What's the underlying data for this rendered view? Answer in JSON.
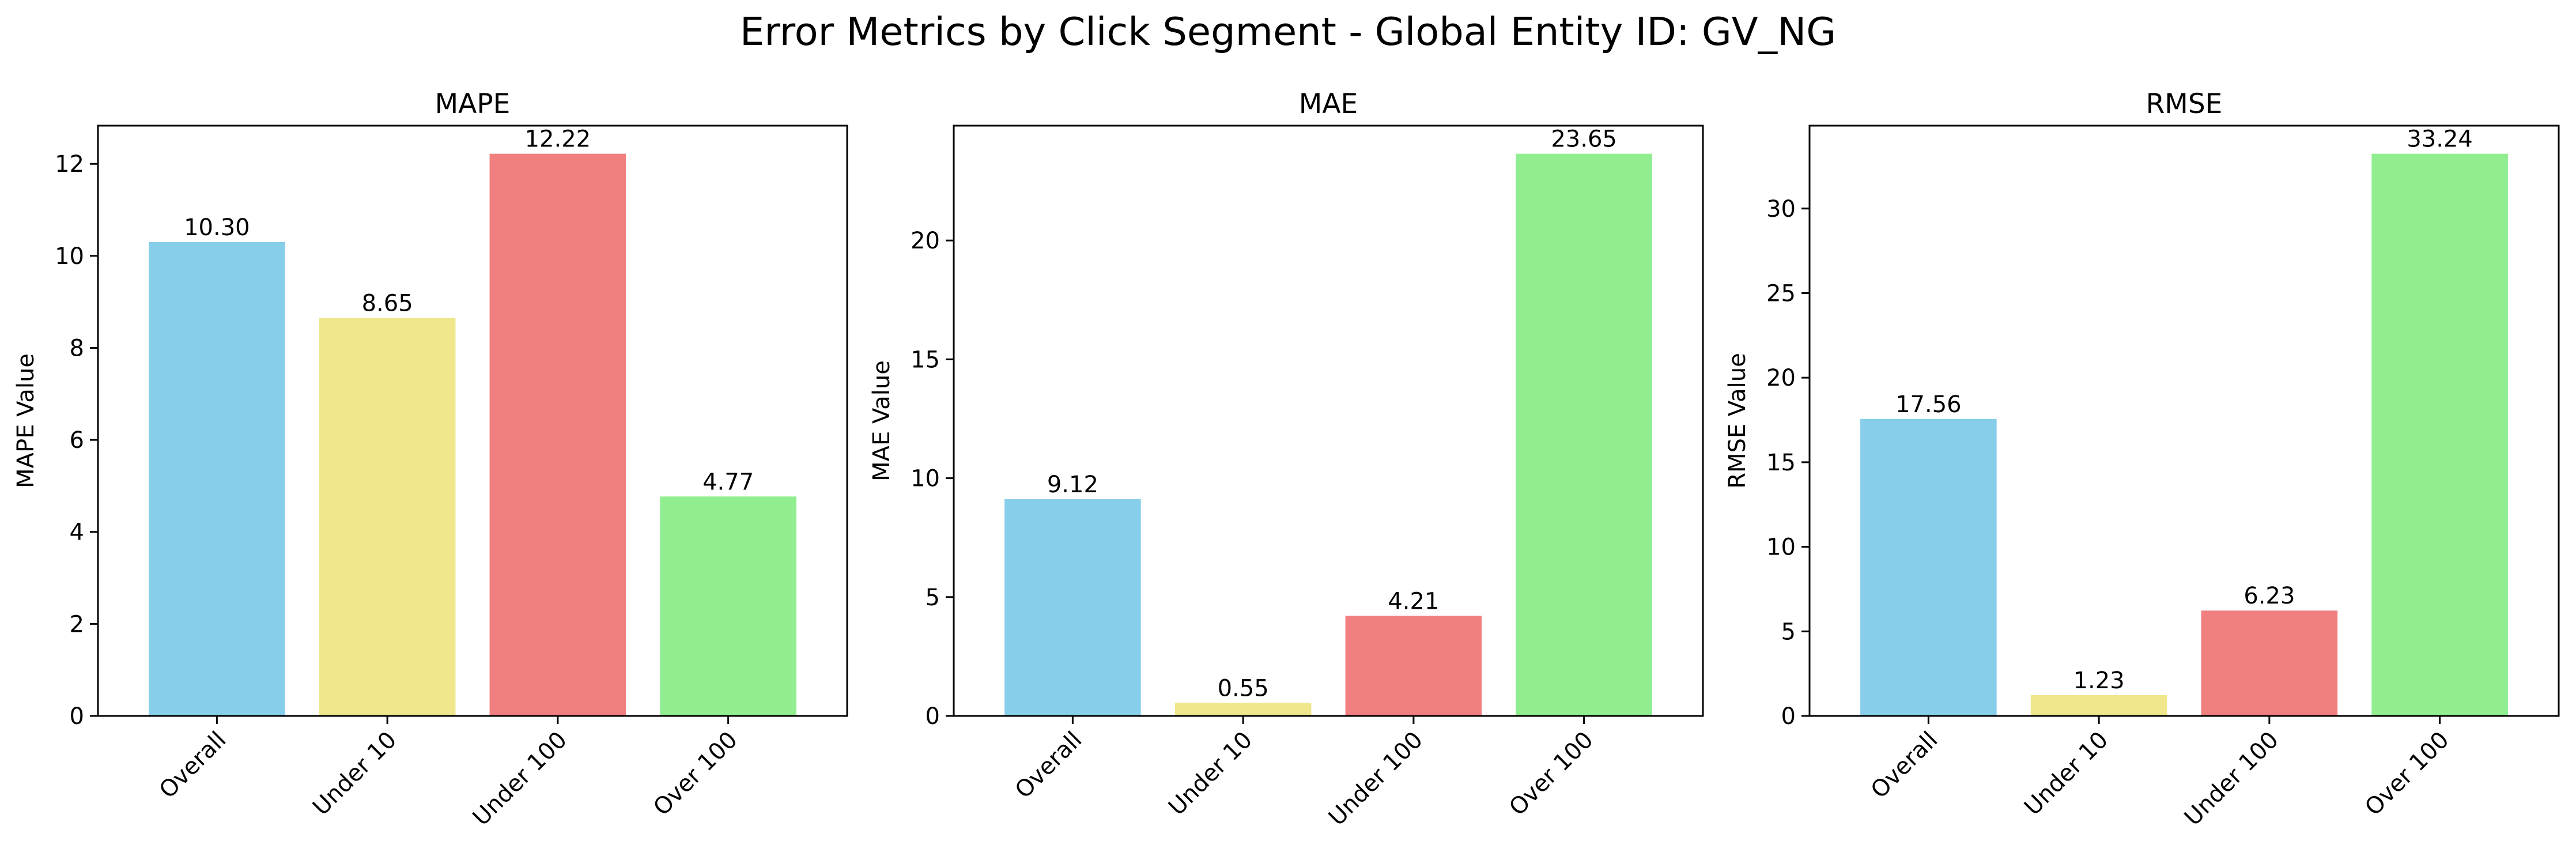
{
  "figure": {
    "title": "Error Metrics by Click Segment - Global Entity ID: GV_NG"
  },
  "chart_data": [
    {
      "type": "bar",
      "title": "MAPE",
      "xlabel": "",
      "ylabel": "MAPE Value",
      "categories": [
        "Overall",
        "Under 10",
        "Under 100",
        "Over 100"
      ],
      "values": [
        10.3,
        8.65,
        12.22,
        4.77
      ],
      "value_labels": [
        "10.30",
        "8.65",
        "12.22",
        "4.77"
      ],
      "colors": [
        "#87CEEB",
        "#F0E68C",
        "#F08080",
        "#90EE90"
      ],
      "ylim": [
        0,
        12.83
      ],
      "yticks": [
        0,
        2,
        4,
        6,
        8,
        10,
        12
      ],
      "grid": false,
      "legend": "none"
    },
    {
      "type": "bar",
      "title": "MAE",
      "xlabel": "",
      "ylabel": "MAE Value",
      "categories": [
        "Overall",
        "Under 10",
        "Under 100",
        "Over 100"
      ],
      "values": [
        9.12,
        0.55,
        4.21,
        23.65
      ],
      "value_labels": [
        "9.12",
        "0.55",
        "4.21",
        "23.65"
      ],
      "colors": [
        "#87CEEB",
        "#F0E68C",
        "#F08080",
        "#90EE90"
      ],
      "ylim": [
        0,
        24.83
      ],
      "yticks": [
        0,
        5,
        10,
        15,
        20
      ],
      "grid": false,
      "legend": "none"
    },
    {
      "type": "bar",
      "title": "RMSE",
      "xlabel": "",
      "ylabel": "RMSE Value",
      "categories": [
        "Overall",
        "Under 10",
        "Under 100",
        "Over 100"
      ],
      "values": [
        17.56,
        1.23,
        6.23,
        33.24
      ],
      "value_labels": [
        "17.56",
        "1.23",
        "6.23",
        "33.24"
      ],
      "colors": [
        "#87CEEB",
        "#F0E68C",
        "#F08080",
        "#90EE90"
      ],
      "ylim": [
        0,
        34.9
      ],
      "yticks": [
        0,
        5,
        10,
        15,
        20,
        25,
        30
      ],
      "grid": false,
      "legend": "none"
    }
  ]
}
